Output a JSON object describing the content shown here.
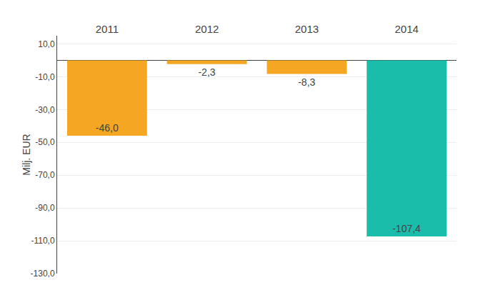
{
  "chart_data": {
    "type": "bar",
    "categories": [
      "2011",
      "2012",
      "2013",
      "2014"
    ],
    "values": [
      -46.0,
      -2.3,
      -8.3,
      -107.4
    ],
    "value_labels": [
      "-46,0",
      "-2,3",
      "-8,3",
      "-107,4"
    ],
    "colors": [
      "#F5A623",
      "#F5A623",
      "#F5A623",
      "#1ABCAA"
    ],
    "ylabel": "Milj. EUR",
    "ylim": [
      -130,
      15
    ],
    "yticks": [
      {
        "value": 10,
        "label": "10,0"
      },
      {
        "value": -10,
        "label": "-10,0"
      },
      {
        "value": -30,
        "label": "-30,0"
      },
      {
        "value": -50,
        "label": "-50,0"
      },
      {
        "value": -70,
        "label": "-70,0"
      },
      {
        "value": -90,
        "label": "-90,0"
      },
      {
        "value": -110,
        "label": "-110,0"
      },
      {
        "value": -130,
        "label": "-130,0"
      }
    ],
    "grid": true,
    "data_labels": true
  }
}
